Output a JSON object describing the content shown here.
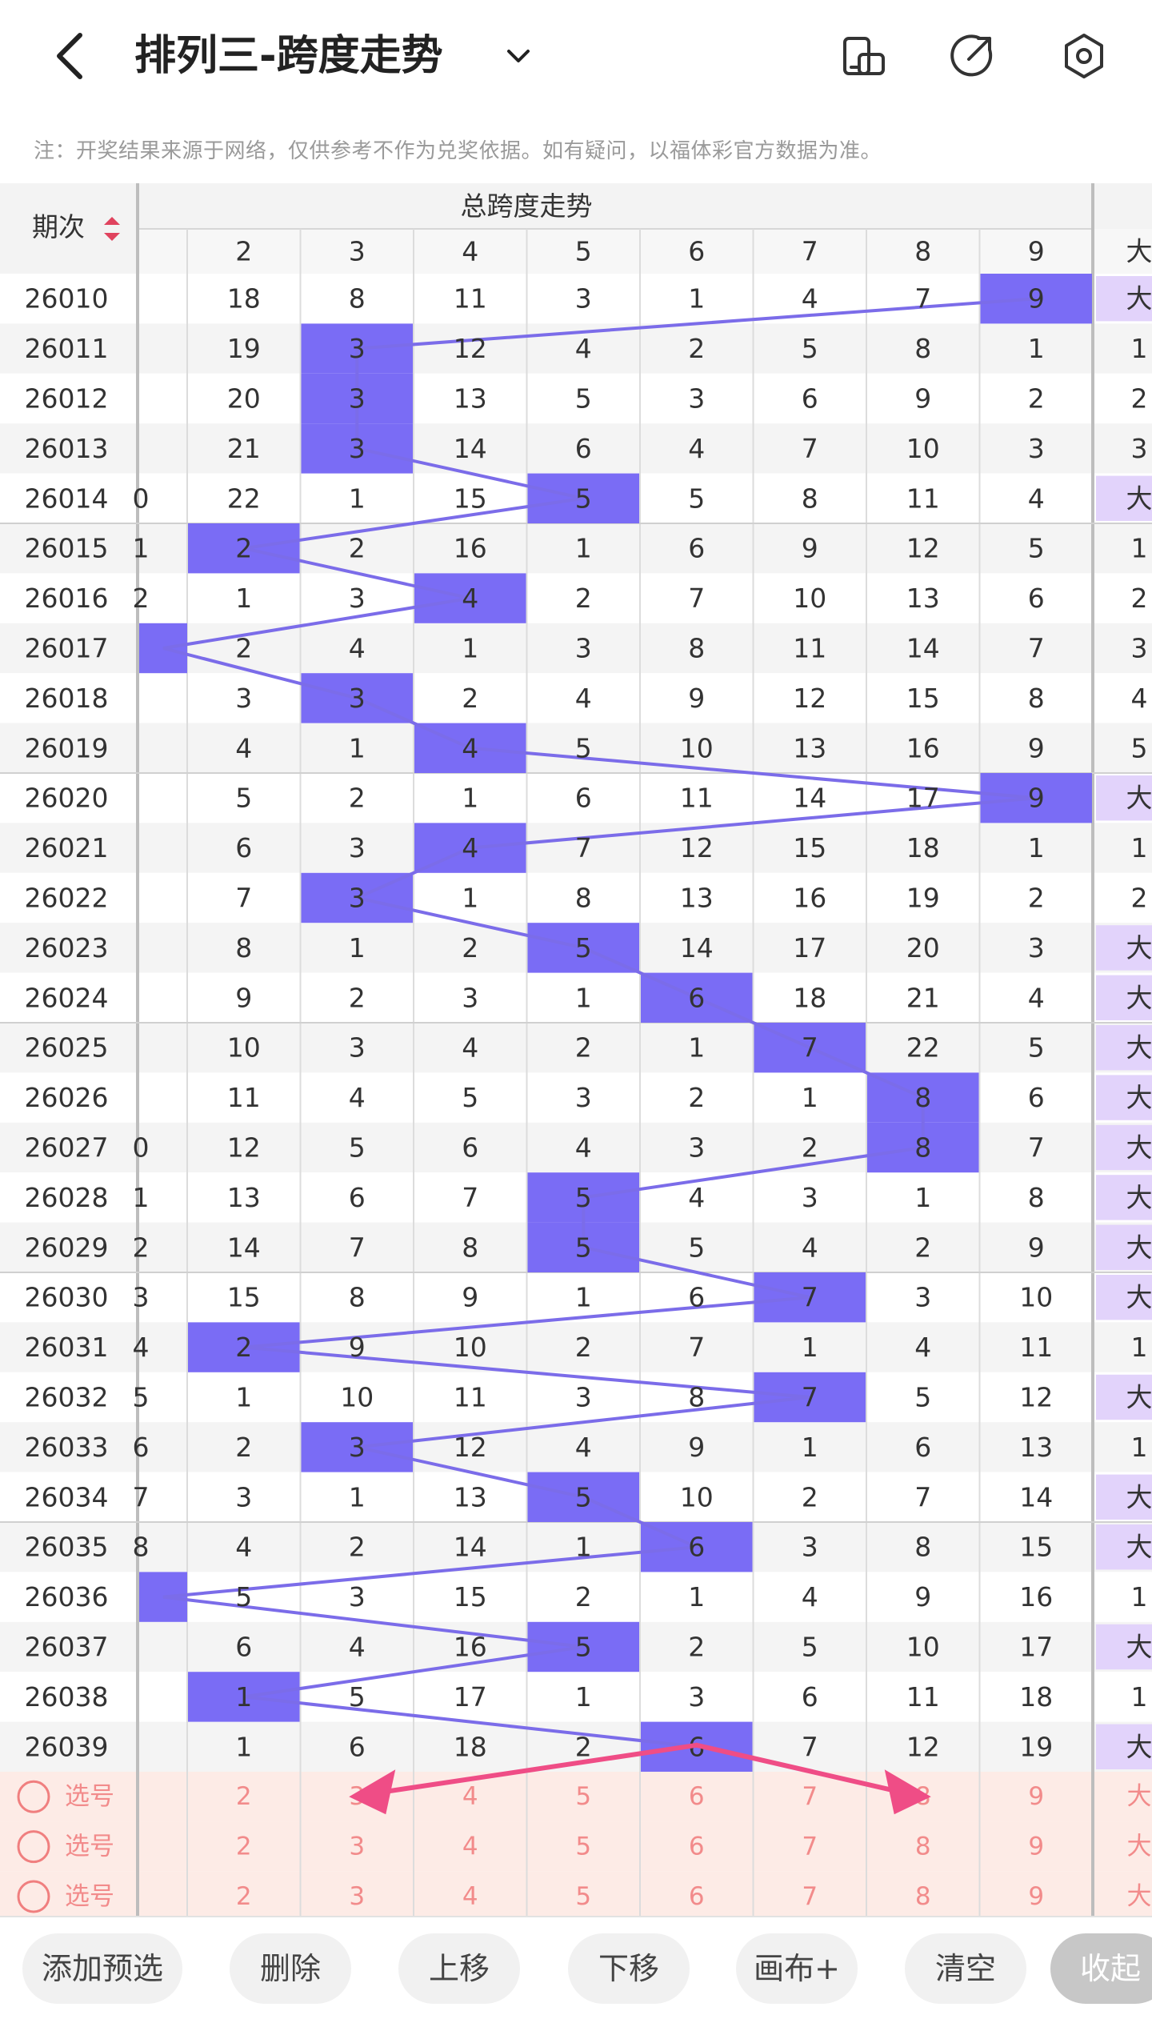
{
  "header": {
    "title": "排列三-跨度走势",
    "icons": [
      "back-icon",
      "chevron-down-icon",
      "phone-rotate-icon",
      "share-icon",
      "settings-icon"
    ]
  },
  "notice": "注：开奖结果来源于网络，仅供参考不作为兑奖依据。如有疑问，以福体彩官方数据为准。",
  "table": {
    "period_header": "期次",
    "group_header": "总跨度走势",
    "columns": [
      "2",
      "3",
      "4",
      "5",
      "6",
      "7",
      "8",
      "9"
    ],
    "big_label": "大",
    "select_label": "选号",
    "colors": {
      "hit": "#7a6cf5",
      "line": "#7b6ce9",
      "big_bg": "#e2d3fb",
      "select_bg": "#fdebe6",
      "select_text": "#f28b8b",
      "arrow": "#ef4d86"
    },
    "rows": [
      {
        "p": "26010",
        "left": "",
        "v": [
          "18",
          "8",
          "11",
          "3",
          "1",
          "4",
          "7",
          "9"
        ],
        "right": "大",
        "hit": 9
      },
      {
        "p": "26011",
        "left": "",
        "v": [
          "19",
          "3",
          "12",
          "4",
          "2",
          "5",
          "8",
          "1"
        ],
        "right": "1",
        "hit": 3
      },
      {
        "p": "26012",
        "left": "",
        "v": [
          "20",
          "3",
          "13",
          "5",
          "3",
          "6",
          "9",
          "2"
        ],
        "right": "2",
        "hit": 3
      },
      {
        "p": "26013",
        "left": "",
        "v": [
          "21",
          "3",
          "14",
          "6",
          "4",
          "7",
          "10",
          "3"
        ],
        "right": "3",
        "hit": 3
      },
      {
        "p": "26014",
        "left": "0",
        "v": [
          "22",
          "1",
          "15",
          "5",
          "5",
          "8",
          "11",
          "4"
        ],
        "right": "大",
        "hit": 5
      },
      {
        "p": "26015",
        "left": "1",
        "v": [
          "2",
          "2",
          "16",
          "1",
          "6",
          "9",
          "12",
          "5"
        ],
        "right": "1",
        "hit": 2
      },
      {
        "p": "26016",
        "left": "2",
        "v": [
          "1",
          "3",
          "4",
          "2",
          "7",
          "10",
          "13",
          "6"
        ],
        "right": "2",
        "hit": 4
      },
      {
        "p": "26017",
        "left": "",
        "v": [
          "2",
          "4",
          "1",
          "3",
          "8",
          "11",
          "14",
          "7"
        ],
        "right": "3",
        "hit": 1
      },
      {
        "p": "26018",
        "left": "",
        "v": [
          "3",
          "3",
          "2",
          "4",
          "9",
          "12",
          "15",
          "8"
        ],
        "right": "4",
        "hit": 3
      },
      {
        "p": "26019",
        "left": "",
        "v": [
          "4",
          "1",
          "4",
          "5",
          "10",
          "13",
          "16",
          "9"
        ],
        "right": "5",
        "hit": 4
      },
      {
        "p": "26020",
        "left": "",
        "v": [
          "5",
          "2",
          "1",
          "6",
          "11",
          "14",
          "17",
          "9"
        ],
        "right": "大",
        "hit": 9
      },
      {
        "p": "26021",
        "left": "",
        "v": [
          "6",
          "3",
          "4",
          "7",
          "12",
          "15",
          "18",
          "1"
        ],
        "right": "1",
        "hit": 4
      },
      {
        "p": "26022",
        "left": "",
        "v": [
          "7",
          "3",
          "1",
          "8",
          "13",
          "16",
          "19",
          "2"
        ],
        "right": "2",
        "hit": 3
      },
      {
        "p": "26023",
        "left": "",
        "v": [
          "8",
          "1",
          "2",
          "5",
          "14",
          "17",
          "20",
          "3"
        ],
        "right": "大",
        "hit": 5
      },
      {
        "p": "26024",
        "left": "",
        "v": [
          "9",
          "2",
          "3",
          "1",
          "6",
          "18",
          "21",
          "4"
        ],
        "right": "大",
        "hit": 6
      },
      {
        "p": "26025",
        "left": "",
        "v": [
          "10",
          "3",
          "4",
          "2",
          "1",
          "7",
          "22",
          "5"
        ],
        "right": "大",
        "hit": 7
      },
      {
        "p": "26026",
        "left": "",
        "v": [
          "11",
          "4",
          "5",
          "3",
          "2",
          "1",
          "8",
          "6"
        ],
        "right": "大",
        "hit": 8
      },
      {
        "p": "26027",
        "left": "0",
        "v": [
          "12",
          "5",
          "6",
          "4",
          "3",
          "2",
          "8",
          "7"
        ],
        "right": "大",
        "hit": 8
      },
      {
        "p": "26028",
        "left": "1",
        "v": [
          "13",
          "6",
          "7",
          "5",
          "4",
          "3",
          "1",
          "8"
        ],
        "right": "大",
        "hit": 5
      },
      {
        "p": "26029",
        "left": "2",
        "v": [
          "14",
          "7",
          "8",
          "5",
          "5",
          "4",
          "2",
          "9"
        ],
        "right": "大",
        "hit": 5
      },
      {
        "p": "26030",
        "left": "3",
        "v": [
          "15",
          "8",
          "9",
          "1",
          "6",
          "7",
          "3",
          "10"
        ],
        "right": "大",
        "hit": 7
      },
      {
        "p": "26031",
        "left": "4",
        "v": [
          "2",
          "9",
          "10",
          "2",
          "7",
          "1",
          "4",
          "11"
        ],
        "right": "1",
        "hit": 2
      },
      {
        "p": "26032",
        "left": "5",
        "v": [
          "1",
          "10",
          "11",
          "3",
          "8",
          "7",
          "5",
          "12"
        ],
        "right": "大",
        "hit": 7
      },
      {
        "p": "26033",
        "left": "6",
        "v": [
          "2",
          "3",
          "12",
          "4",
          "9",
          "1",
          "6",
          "13"
        ],
        "right": "1",
        "hit": 3
      },
      {
        "p": "26034",
        "left": "7",
        "v": [
          "3",
          "1",
          "13",
          "5",
          "10",
          "2",
          "7",
          "14"
        ],
        "right": "大",
        "hit": 5
      },
      {
        "p": "26035",
        "left": "8",
        "v": [
          "4",
          "2",
          "14",
          "1",
          "6",
          "3",
          "8",
          "15"
        ],
        "right": "大",
        "hit": 6
      },
      {
        "p": "26036",
        "left": "",
        "v": [
          "5",
          "3",
          "15",
          "2",
          "1",
          "4",
          "9",
          "16"
        ],
        "right": "1",
        "hit": 1
      },
      {
        "p": "26037",
        "left": "",
        "v": [
          "6",
          "4",
          "16",
          "5",
          "2",
          "5",
          "10",
          "17"
        ],
        "right": "大",
        "hit": 5
      },
      {
        "p": "26038",
        "left": "",
        "v": [
          "1",
          "5",
          "17",
          "1",
          "3",
          "6",
          "11",
          "18"
        ],
        "right": "1",
        "hit": 2
      },
      {
        "p": "26039",
        "left": "",
        "v": [
          "1",
          "6",
          "18",
          "2",
          "6",
          "7",
          "12",
          "19"
        ],
        "right": "大",
        "hit": 6
      }
    ],
    "select_rows": 3
  },
  "toolbar": {
    "buttons": [
      "添加预选",
      "删除",
      "上移",
      "下移",
      "画布+",
      "清空",
      "收起"
    ]
  }
}
